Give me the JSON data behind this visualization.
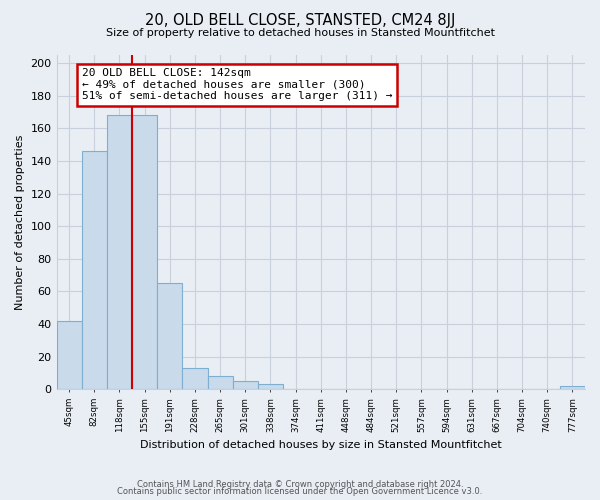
{
  "title": "20, OLD BELL CLOSE, STANSTED, CM24 8JJ",
  "subtitle": "Size of property relative to detached houses in Stansted Mountfitchet",
  "xlabel": "Distribution of detached houses by size in Stansted Mountfitchet",
  "ylabel": "Number of detached properties",
  "bar_values": [
    42,
    146,
    168,
    168,
    65,
    13,
    8,
    5,
    3,
    0,
    0,
    0,
    0,
    0,
    0,
    0,
    0,
    0,
    0,
    0,
    2
  ],
  "bar_labels": [
    "45sqm",
    "82sqm",
    "118sqm",
    "155sqm",
    "191sqm",
    "228sqm",
    "265sqm",
    "301sqm",
    "338sqm",
    "374sqm",
    "411sqm",
    "448sqm",
    "484sqm",
    "521sqm",
    "557sqm",
    "594sqm",
    "631sqm",
    "667sqm",
    "704sqm",
    "740sqm",
    "777sqm"
  ],
  "bar_color": "#c9daea",
  "bar_edge_color": "#7fafd0",
  "annotation_box_text": "20 OLD BELL CLOSE: 142sqm\n← 49% of detached houses are smaller (300)\n51% of semi-detached houses are larger (311) →",
  "annotation_box_facecolor": "white",
  "annotation_box_edgecolor": "#cc0000",
  "vline_x_idx": 2,
  "vline_color": "#cc0000",
  "ylim": [
    0,
    205
  ],
  "yticks": [
    0,
    20,
    40,
    60,
    80,
    100,
    120,
    140,
    160,
    180,
    200
  ],
  "bg_color": "#e8eef4",
  "grid_color": "#c8d0dc",
  "footer_line1": "Contains HM Land Registry data © Crown copyright and database right 2024.",
  "footer_line2": "Contains public sector information licensed under the Open Government Licence v3.0."
}
